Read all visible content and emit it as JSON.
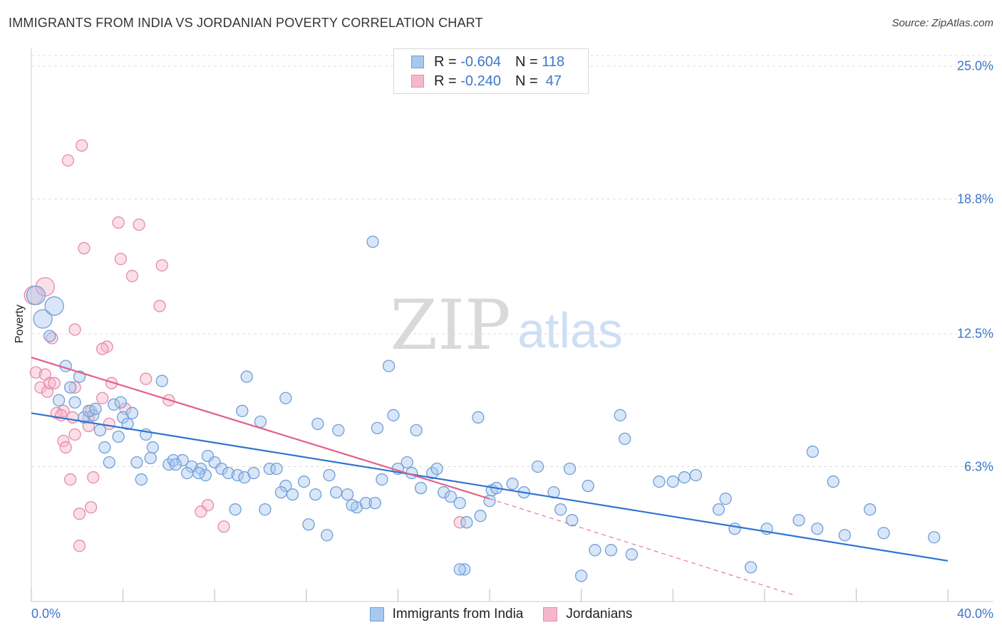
{
  "title": "IMMIGRANTS FROM INDIA VS JORDANIAN POVERTY CORRELATION CHART",
  "source": "Source: ZipAtlas.com",
  "watermark": {
    "zip": "ZIP",
    "atlas": "atlas"
  },
  "colors": {
    "blue_fill": "#a9c8f0",
    "blue_stroke": "#6f9fd8",
    "blue_line": "#2f74d0",
    "pink_fill": "#f5b8cb",
    "pink_stroke": "#e88aa8",
    "pink_line": "#e0608a",
    "axis_text": "#3b78c9",
    "grid": "#dddddd"
  },
  "legend": {
    "rows": [
      {
        "r_label": "R =",
        "r_value": "-0.604",
        "n_label": "N =",
        "n_value": "118"
      },
      {
        "r_label": "R =",
        "r_value": "-0.240",
        "n_label": "N =",
        "n_value": "47"
      }
    ]
  },
  "bottom_legend": {
    "series1": "Immigrants from India",
    "series2": "Jordanians"
  },
  "chart_data": {
    "type": "scatter",
    "title": "IMMIGRANTS FROM INDIA VS JORDANIAN POVERTY CORRELATION CHART",
    "xlabel": "",
    "ylabel": "Poverty",
    "xlim": [
      0,
      40
    ],
    "ylim": [
      0,
      25.5
    ],
    "y_ticks": [
      6.3,
      12.5,
      18.8,
      25.0
    ],
    "y_tick_labels": [
      "6.3%",
      "12.5%",
      "18.8%",
      "25.0%"
    ],
    "x_tick_labels": [
      "0.0%",
      "40.0%"
    ],
    "grid": true,
    "legend_position": "top-center",
    "series": [
      {
        "name": "Immigrants from India",
        "color": "#a9c8f0",
        "trend": {
          "x": [
            0,
            40
          ],
          "y": [
            8.8,
            1.9
          ],
          "style": "solid"
        },
        "points": [
          [
            0.2,
            14.3
          ],
          [
            0.5,
            13.2
          ],
          [
            1.0,
            13.8
          ],
          [
            0.8,
            12.4
          ],
          [
            1.5,
            11.0
          ],
          [
            2.1,
            10.5
          ],
          [
            1.7,
            10.0
          ],
          [
            1.2,
            9.4
          ],
          [
            1.9,
            9.3
          ],
          [
            2.3,
            8.6
          ],
          [
            2.7,
            8.7
          ],
          [
            2.5,
            8.9
          ],
          [
            3.0,
            8.0
          ],
          [
            3.6,
            9.2
          ],
          [
            4.0,
            8.6
          ],
          [
            4.4,
            8.8
          ],
          [
            3.2,
            7.2
          ],
          [
            3.8,
            7.7
          ],
          [
            4.2,
            8.3
          ],
          [
            5.0,
            7.8
          ],
          [
            5.3,
            7.2
          ],
          [
            3.4,
            6.5
          ],
          [
            5.2,
            6.7
          ],
          [
            6.0,
            6.4
          ],
          [
            6.2,
            6.6
          ],
          [
            6.6,
            6.6
          ],
          [
            7.0,
            6.3
          ],
          [
            7.4,
            6.2
          ],
          [
            7.7,
            6.8
          ],
          [
            8.0,
            6.5
          ],
          [
            8.3,
            6.2
          ],
          [
            8.6,
            6.0
          ],
          [
            9.0,
            5.9
          ],
          [
            9.3,
            5.8
          ],
          [
            9.7,
            6.0
          ],
          [
            10.4,
            6.2
          ],
          [
            10.7,
            6.2
          ],
          [
            11.1,
            5.4
          ],
          [
            11.4,
            5.0
          ],
          [
            11.9,
            5.6
          ],
          [
            12.4,
            5.0
          ],
          [
            13.0,
            5.9
          ],
          [
            13.3,
            5.1
          ],
          [
            13.8,
            5.0
          ],
          [
            14.2,
            4.4
          ],
          [
            14.6,
            4.6
          ],
          [
            15.0,
            4.6
          ],
          [
            15.3,
            5.7
          ],
          [
            16.0,
            6.2
          ],
          [
            16.4,
            6.5
          ],
          [
            16.6,
            6.0
          ],
          [
            17.0,
            5.3
          ],
          [
            17.5,
            6.0
          ],
          [
            17.7,
            6.2
          ],
          [
            18.0,
            5.1
          ],
          [
            18.3,
            4.9
          ],
          [
            18.7,
            4.6
          ],
          [
            19.0,
            3.7
          ],
          [
            19.6,
            4.0
          ],
          [
            20.1,
            5.2
          ],
          [
            20.3,
            5.3
          ],
          [
            21.0,
            5.5
          ],
          [
            21.5,
            5.1
          ],
          [
            22.1,
            6.3
          ],
          [
            22.8,
            5.1
          ],
          [
            23.5,
            6.2
          ],
          [
            23.1,
            4.3
          ],
          [
            23.6,
            3.8
          ],
          [
            24.0,
            1.2
          ],
          [
            24.6,
            2.4
          ],
          [
            25.3,
            2.4
          ],
          [
            25.7,
            8.7
          ],
          [
            25.9,
            7.6
          ],
          [
            24.3,
            5.4
          ],
          [
            26.2,
            2.2
          ],
          [
            20.0,
            4.7
          ],
          [
            18.9,
            1.5
          ],
          [
            18.7,
            1.5
          ],
          [
            19.5,
            8.6
          ],
          [
            27.4,
            5.6
          ],
          [
            28.5,
            5.8
          ],
          [
            28.0,
            5.6
          ],
          [
            29.0,
            5.9
          ],
          [
            30.0,
            4.3
          ],
          [
            30.3,
            4.8
          ],
          [
            30.7,
            3.4
          ],
          [
            31.4,
            1.6
          ],
          [
            32.1,
            3.4
          ],
          [
            33.5,
            3.8
          ],
          [
            34.1,
            7.0
          ],
          [
            34.3,
            3.4
          ],
          [
            35.0,
            5.6
          ],
          [
            35.5,
            3.1
          ],
          [
            36.6,
            4.3
          ],
          [
            37.2,
            3.2
          ],
          [
            39.4,
            3.0
          ],
          [
            14.9,
            16.8
          ],
          [
            15.6,
            11.0
          ],
          [
            11.1,
            9.5
          ],
          [
            9.4,
            10.5
          ],
          [
            9.2,
            8.9
          ],
          [
            10.0,
            8.4
          ],
          [
            12.5,
            8.3
          ],
          [
            13.4,
            8.0
          ],
          [
            15.1,
            8.1
          ],
          [
            15.8,
            8.7
          ],
          [
            16.8,
            8.0
          ],
          [
            8.9,
            4.3
          ],
          [
            10.2,
            4.3
          ],
          [
            10.9,
            5.1
          ],
          [
            12.9,
            3.1
          ],
          [
            14.0,
            4.5
          ],
          [
            12.1,
            3.6
          ],
          [
            7.6,
            5.9
          ],
          [
            5.7,
            10.3
          ],
          [
            6.8,
            6.0
          ],
          [
            6.3,
            6.4
          ],
          [
            4.8,
            5.7
          ],
          [
            2.8,
            9.0
          ],
          [
            3.9,
            9.3
          ],
          [
            4.6,
            6.5
          ],
          [
            7.3,
            6.0
          ]
        ]
      },
      {
        "name": "Jordanians",
        "color": "#f5b8cb",
        "trend": {
          "x": [
            0,
            20
          ],
          "y": [
            11.4,
            4.8
          ],
          "style": "solid",
          "dashed_extension": {
            "x": [
              20,
              33.3
            ],
            "y": [
              4.8,
              0.3
            ]
          }
        },
        "points": [
          [
            0.1,
            14.3
          ],
          [
            0.6,
            14.7
          ],
          [
            2.2,
            21.3
          ],
          [
            1.6,
            20.6
          ],
          [
            3.8,
            17.7
          ],
          [
            4.7,
            17.6
          ],
          [
            2.3,
            16.5
          ],
          [
            3.9,
            16.0
          ],
          [
            4.4,
            15.2
          ],
          [
            5.7,
            15.7
          ],
          [
            5.6,
            13.8
          ],
          [
            1.9,
            12.7
          ],
          [
            0.9,
            12.3
          ],
          [
            3.3,
            11.9
          ],
          [
            3.1,
            11.8
          ],
          [
            0.2,
            10.7
          ],
          [
            0.6,
            10.6
          ],
          [
            0.4,
            10.0
          ],
          [
            0.7,
            9.8
          ],
          [
            0.8,
            10.2
          ],
          [
            1.0,
            10.2
          ],
          [
            1.9,
            10.0
          ],
          [
            3.5,
            10.2
          ],
          [
            5.0,
            10.4
          ],
          [
            3.1,
            9.5
          ],
          [
            4.1,
            9.0
          ],
          [
            6.0,
            9.4
          ],
          [
            1.4,
            8.9
          ],
          [
            2.5,
            8.6
          ],
          [
            1.1,
            8.8
          ],
          [
            2.6,
            8.9
          ],
          [
            1.8,
            8.6
          ],
          [
            2.5,
            8.2
          ],
          [
            1.3,
            8.7
          ],
          [
            1.4,
            7.5
          ],
          [
            1.9,
            7.8
          ],
          [
            1.5,
            7.2
          ],
          [
            3.4,
            8.3
          ],
          [
            1.7,
            5.7
          ],
          [
            2.7,
            5.8
          ],
          [
            2.1,
            4.1
          ],
          [
            2.6,
            4.4
          ],
          [
            7.7,
            4.5
          ],
          [
            8.4,
            3.5
          ],
          [
            7.4,
            4.2
          ],
          [
            2.1,
            2.6
          ],
          [
            18.7,
            3.7
          ]
        ]
      }
    ]
  }
}
